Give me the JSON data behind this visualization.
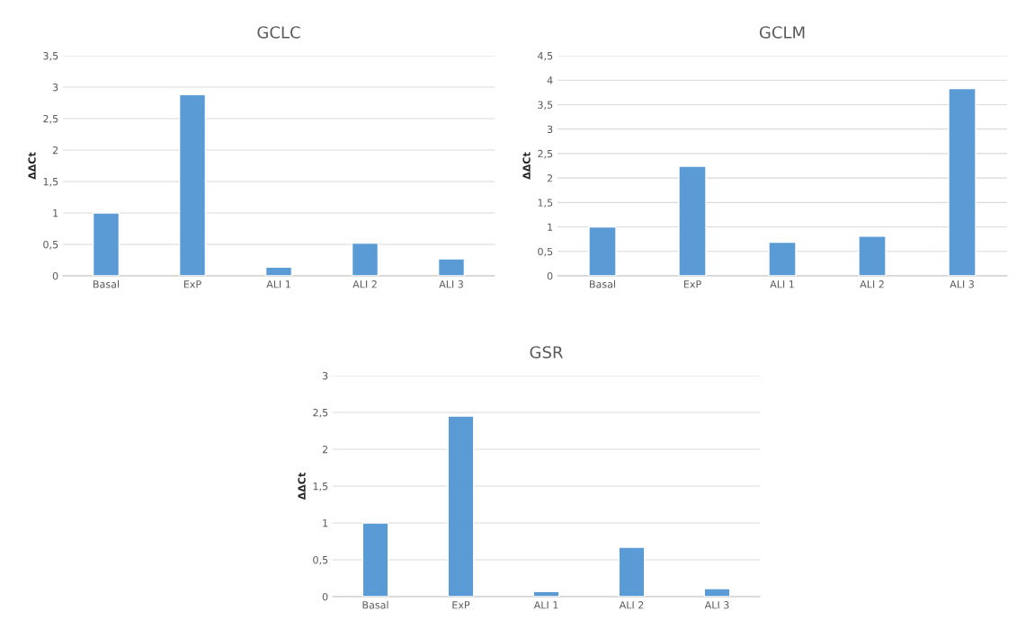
{
  "chart_data": [
    {
      "type": "bar",
      "title": "GCLC",
      "ylabel": "ΔΔCt",
      "categories": [
        "Basal",
        "ExP",
        "ALI 1",
        "ALI 2",
        "ALI 3"
      ],
      "values": [
        1.0,
        2.88,
        0.14,
        0.52,
        0.27
      ],
      "color": "#5b9bd5",
      "ylim": [
        0,
        3.5
      ],
      "yticks": [
        0,
        {
          "value": 0.5,
          "label": "0,5"
        },
        1,
        {
          "value": 1.5,
          "label": "1,5"
        },
        2,
        {
          "value": 2.5,
          "label": "2,5"
        },
        3,
        {
          "value": 3.5,
          "label": "3,5"
        }
      ],
      "grid": "y",
      "legend": false
    },
    {
      "type": "bar",
      "title": "GCLM",
      "ylabel": "ΔΔCt",
      "categories": [
        "Basal",
        "ExP",
        "ALI 1",
        "ALI 2",
        "ALI 3"
      ],
      "values": [
        1.0,
        2.24,
        0.69,
        0.81,
        3.83
      ],
      "color": "#5b9bd5",
      "ylim": [
        0,
        4.5
      ],
      "yticks": [
        0,
        {
          "value": 0.5,
          "label": "0,5"
        },
        1,
        {
          "value": 1.5,
          "label": "1,5"
        },
        2,
        {
          "value": 2.5,
          "label": "2,5"
        },
        3,
        {
          "value": 3.5,
          "label": "3,5"
        },
        4,
        {
          "value": 4.5,
          "label": "4,5"
        }
      ],
      "grid": "y",
      "legend": false
    },
    {
      "type": "bar",
      "title": "GSR",
      "ylabel": "ΔΔCt",
      "categories": [
        "Basal",
        "ExP",
        "ALI 1",
        "ALI 2",
        "ALI 3"
      ],
      "values": [
        1.0,
        2.45,
        0.07,
        0.67,
        0.11
      ],
      "color": "#5b9bd5",
      "ylim": [
        0,
        3
      ],
      "yticks": [
        0,
        {
          "value": 0.5,
          "label": "0,5"
        },
        1,
        {
          "value": 1.5,
          "label": "1,5"
        },
        2,
        {
          "value": 2.5,
          "label": "2,5"
        },
        3
      ],
      "grid": "y",
      "legend": false
    }
  ]
}
